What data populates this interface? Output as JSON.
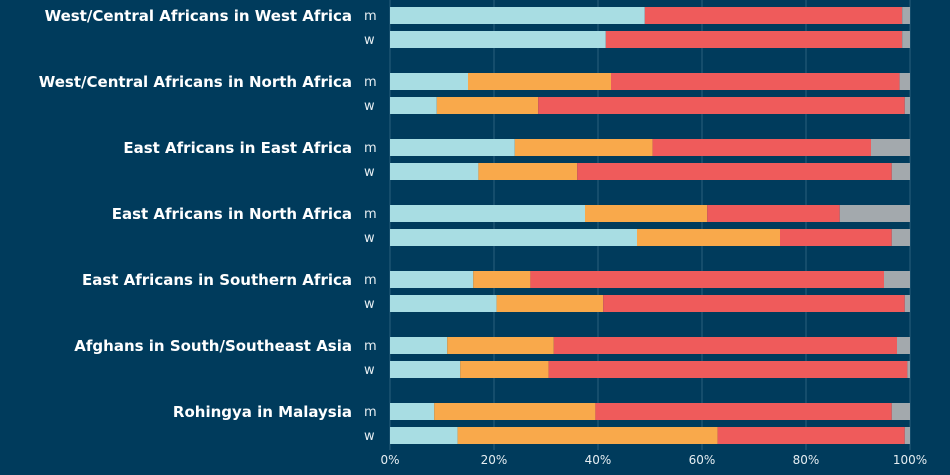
{
  "chart_data": {
    "type": "bar",
    "orientation": "horizontal",
    "stacked": true,
    "percent_scale": true,
    "xlim": [
      0,
      100
    ],
    "x_ticks": [
      "0%",
      "20%",
      "40%",
      "60%",
      "80%",
      "100%"
    ],
    "grid": "vertical",
    "legend": "none",
    "segment_colors": [
      "#a8dde3",
      "#f9a94b",
      "#ef5b5b",
      "#a3a9ad"
    ],
    "groups": [
      {
        "label": "West/Central Africans in West Africa",
        "rows": [
          {
            "label": "m",
            "values": [
              49,
              0,
              49.5,
              1.5
            ]
          },
          {
            "label": "w",
            "values": [
              41.5,
              0,
              57,
              1.5
            ]
          }
        ]
      },
      {
        "label": "West/Central Africans in North Africa",
        "rows": [
          {
            "label": "m",
            "values": [
              15,
              27.5,
              55.5,
              2
            ]
          },
          {
            "label": "w",
            "values": [
              9,
              19.5,
              70.5,
              1
            ]
          }
        ]
      },
      {
        "label": "East Africans in East Africa",
        "rows": [
          {
            "label": "m",
            "values": [
              24,
              26.5,
              42,
              7.5
            ]
          },
          {
            "label": "w",
            "values": [
              17,
              19,
              60.5,
              3.5
            ]
          }
        ]
      },
      {
        "label": "East Africans in North Africa",
        "rows": [
          {
            "label": "m",
            "values": [
              37.5,
              23.5,
              25.5,
              13.5
            ]
          },
          {
            "label": "w",
            "values": [
              47.5,
              27.5,
              21.5,
              3.5
            ]
          }
        ]
      },
      {
        "label": "East Africans in Southern Africa",
        "rows": [
          {
            "label": "m",
            "values": [
              16,
              11,
              68,
              5
            ]
          },
          {
            "label": "w",
            "values": [
              20.5,
              20.5,
              58,
              1
            ]
          }
        ]
      },
      {
        "label": "Afghans in South/Southeast Asia",
        "rows": [
          {
            "label": "m",
            "values": [
              11,
              20.5,
              66,
              2.5
            ]
          },
          {
            "label": "w",
            "values": [
              13.5,
              17,
              69,
              0.5
            ]
          }
        ]
      },
      {
        "label": "Rohingya in Malaysia",
        "rows": [
          {
            "label": "m",
            "values": [
              8.5,
              31,
              57,
              3.5
            ]
          },
          {
            "label": "w",
            "values": [
              13,
              50,
              36,
              1
            ]
          }
        ]
      }
    ]
  }
}
